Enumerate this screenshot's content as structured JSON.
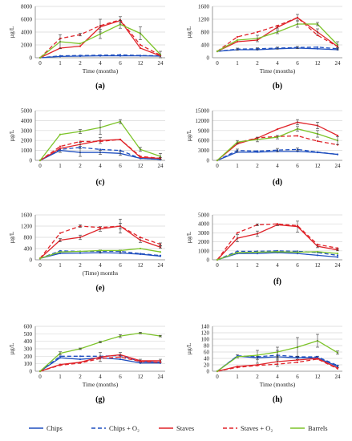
{
  "colors": {
    "chips": "#1f4fbf",
    "staves": "#e0242a",
    "barrels": "#7dc42a",
    "grid": "#d9d9d9",
    "axis": "#7f7f7f"
  },
  "legend": [
    {
      "key": "chips",
      "label": "Chips",
      "dash": "solid",
      "color": "#1f4fbf"
    },
    {
      "key": "chipsO2",
      "label": "Chips + O₂",
      "dash": "dashed",
      "color": "#1f4fbf"
    },
    {
      "key": "staves",
      "label": "Staves",
      "dash": "solid",
      "color": "#e0242a"
    },
    {
      "key": "stavesO2",
      "label": "Staves + O₂",
      "dash": "dashed",
      "color": "#e0242a"
    },
    {
      "key": "barrels",
      "label": "Barrels",
      "dash": "solid",
      "color": "#7dc42a"
    }
  ],
  "chart_data": [
    {
      "id": "a",
      "panel_label": "(a)",
      "type": "line",
      "x": [
        "0",
        "1",
        "2",
        "4",
        "6",
        "12",
        "24"
      ],
      "xlabel": "Time (months)",
      "ylabel": "µg/L",
      "ylim": [
        0,
        8000
      ],
      "yticks": [
        0,
        2000,
        4000,
        6000,
        8000
      ],
      "grid": true,
      "series": [
        {
          "key": "chips",
          "values": [
            0,
            200,
            250,
            300,
            300,
            300,
            250
          ],
          "err": [
            0,
            0,
            0,
            0,
            0,
            0,
            0
          ]
        },
        {
          "key": "chipsO2",
          "values": [
            0,
            300,
            350,
            400,
            450,
            350,
            300
          ],
          "err": [
            0,
            0,
            0,
            0,
            0,
            0,
            0
          ]
        },
        {
          "key": "staves",
          "values": [
            0,
            1500,
            1800,
            4800,
            5800,
            1500,
            300
          ],
          "err": [
            0,
            0,
            0,
            0,
            0,
            0,
            0
          ]
        },
        {
          "key": "stavesO2",
          "values": [
            0,
            3000,
            3600,
            5000,
            5900,
            2000,
            400
          ],
          "err": [
            0,
            0,
            200,
            1000,
            500,
            0,
            0
          ]
        },
        {
          "key": "barrels",
          "values": [
            0,
            2500,
            2200,
            3700,
            5200,
            3800,
            500
          ],
          "err": [
            0,
            1100,
            0,
            700,
            600,
            1000,
            500
          ]
        }
      ]
    },
    {
      "id": "b",
      "panel_label": "(b)",
      "type": "line",
      "x": [
        "0",
        "1",
        "2",
        "4",
        "6",
        "12",
        "24"
      ],
      "xlabel": "Time (months)",
      "ylabel": "µg/L",
      "ylim": [
        0,
        1600
      ],
      "yticks": [
        0,
        400,
        800,
        1200,
        1600
      ],
      "grid": true,
      "series": [
        {
          "key": "chips",
          "values": [
            200,
            250,
            250,
            280,
            300,
            280,
            250
          ],
          "err": [
            0,
            0,
            0,
            0,
            0,
            0,
            0
          ]
        },
        {
          "key": "chipsO2",
          "values": [
            200,
            270,
            280,
            300,
            320,
            330,
            280
          ],
          "err": [
            0,
            30,
            30,
            30,
            30,
            0,
            30
          ]
        },
        {
          "key": "staves",
          "values": [
            200,
            500,
            550,
            950,
            1250,
            800,
            350
          ],
          "err": [
            0,
            0,
            0,
            50,
            100,
            100,
            0
          ]
        },
        {
          "key": "stavesO2",
          "values": [
            200,
            650,
            800,
            1000,
            1250,
            700,
            350
          ],
          "err": [
            0,
            0,
            0,
            0,
            0,
            0,
            0
          ]
        },
        {
          "key": "barrels",
          "values": [
            200,
            550,
            600,
            800,
            1050,
            1050,
            400
          ],
          "err": [
            0,
            0,
            100,
            50,
            100,
            50,
            100
          ]
        }
      ]
    },
    {
      "id": "c",
      "panel_label": "(c)",
      "type": "line",
      "x": [
        "0",
        "1",
        "2",
        "4",
        "6",
        "12",
        "24"
      ],
      "xlabel": "",
      "ylabel": "µg/L",
      "ylim": [
        0,
        5000
      ],
      "yticks": [
        0,
        1000,
        2000,
        3000,
        4000,
        5000
      ],
      "grid": true,
      "series": [
        {
          "key": "chips",
          "values": [
            0,
            1000,
            800,
            800,
            700,
            200,
            100
          ],
          "err": [
            0,
            200,
            400,
            200,
            200,
            0,
            0
          ]
        },
        {
          "key": "chipsO2",
          "values": [
            0,
            1100,
            1300,
            1100,
            1000,
            200,
            100
          ],
          "err": [
            0,
            0,
            0,
            0,
            0,
            0,
            0
          ]
        },
        {
          "key": "staves",
          "values": [
            0,
            1200,
            1600,
            2000,
            2100,
            300,
            200
          ],
          "err": [
            0,
            0,
            200,
            300,
            0,
            0,
            100
          ]
        },
        {
          "key": "stavesO2",
          "values": [
            0,
            1400,
            1900,
            1900,
            2100,
            400,
            200
          ],
          "err": [
            0,
            0,
            0,
            0,
            0,
            0,
            0
          ]
        },
        {
          "key": "barrels",
          "values": [
            0,
            2600,
            2900,
            3300,
            3900,
            1100,
            400
          ],
          "err": [
            0,
            0,
            200,
            700,
            200,
            200,
            300
          ]
        }
      ]
    },
    {
      "id": "d",
      "panel_label": "(d)",
      "type": "line",
      "x": [
        "0",
        "1",
        "2",
        "4",
        "6",
        "12",
        "24"
      ],
      "xlabel": "",
      "ylabel": "µg/L",
      "ylim": [
        0,
        15000
      ],
      "yticks": [
        0,
        3000,
        6000,
        9000,
        12000,
        15000
      ],
      "grid": true,
      "series": [
        {
          "key": "chips",
          "values": [
            0,
            2500,
            2500,
            2700,
            2700,
            2400,
            1800
          ],
          "err": [
            0,
            0,
            0,
            0,
            0,
            0,
            0
          ]
        },
        {
          "key": "chipsO2",
          "values": [
            0,
            3000,
            2800,
            3100,
            3300,
            2500,
            1800
          ],
          "err": [
            0,
            400,
            0,
            500,
            400,
            0,
            0
          ]
        },
        {
          "key": "staves",
          "values": [
            0,
            5000,
            6700,
            9400,
            11500,
            10500,
            7500
          ],
          "err": [
            0,
            0,
            0,
            0,
            800,
            1000,
            0
          ]
        },
        {
          "key": "stavesO2",
          "values": [
            0,
            5300,
            6800,
            7200,
            7400,
            5800,
            4700
          ],
          "err": [
            0,
            0,
            0,
            0,
            0,
            0,
            0
          ]
        },
        {
          "key": "barrels",
          "values": [
            0,
            5500,
            6300,
            7000,
            9500,
            8000,
            6000
          ],
          "err": [
            0,
            500,
            700,
            500,
            700,
            1000,
            1200
          ]
        }
      ]
    },
    {
      "id": "e",
      "panel_label": "(e)",
      "type": "line",
      "x": [
        "0",
        "1",
        "2",
        "4",
        "6",
        "12",
        "24"
      ],
      "xlabel": "(Time) months",
      "ylabel": "µg/L",
      "ylim": [
        0,
        1600
      ],
      "yticks": [
        0,
        400,
        800,
        1200,
        1600
      ],
      "grid": true,
      "series": [
        {
          "key": "chips",
          "values": [
            50,
            230,
            240,
            250,
            240,
            200,
            130
          ],
          "err": [
            0,
            0,
            0,
            0,
            0,
            0,
            0
          ]
        },
        {
          "key": "chipsO2",
          "values": [
            50,
            320,
            300,
            300,
            300,
            220,
            150
          ],
          "err": [
            0,
            0,
            0,
            50,
            50,
            0,
            0
          ]
        },
        {
          "key": "staves",
          "values": [
            50,
            700,
            800,
            1100,
            1200,
            700,
            450
          ],
          "err": [
            0,
            60,
            80,
            80,
            250,
            80,
            40
          ]
        },
        {
          "key": "stavesO2",
          "values": [
            50,
            950,
            1200,
            1150,
            1200,
            800,
            550
          ],
          "err": [
            0,
            0,
            50,
            0,
            100,
            0,
            50
          ]
        },
        {
          "key": "barrels",
          "values": [
            50,
            280,
            300,
            330,
            330,
            400,
            280
          ],
          "err": [
            0,
            0,
            0,
            0,
            0,
            0,
            0
          ]
        }
      ]
    },
    {
      "id": "f",
      "panel_label": "(f)",
      "type": "line",
      "x": [
        "0",
        "1",
        "2",
        "4",
        "6",
        "12",
        "24"
      ],
      "xlabel": "",
      "ylabel": "µg/L",
      "ylim": [
        0,
        5000
      ],
      "yticks": [
        0,
        1000,
        2000,
        3000,
        4000,
        5000
      ],
      "grid": true,
      "series": [
        {
          "key": "chips",
          "values": [
            0,
            700,
            700,
            800,
            700,
            500,
            300
          ],
          "err": [
            0,
            0,
            0,
            0,
            0,
            0,
            0
          ]
        },
        {
          "key": "chipsO2",
          "values": [
            0,
            950,
            950,
            1000,
            950,
            800,
            500
          ],
          "err": [
            0,
            0,
            0,
            0,
            0,
            0,
            0
          ]
        },
        {
          "key": "staves",
          "values": [
            0,
            2400,
            2900,
            3900,
            3700,
            1500,
            1100
          ],
          "err": [
            0,
            400,
            300,
            100,
            600,
            150,
            100
          ]
        },
        {
          "key": "stavesO2",
          "values": [
            0,
            3000,
            3900,
            4000,
            3800,
            1700,
            1300
          ],
          "err": [
            0,
            0,
            100,
            0,
            0,
            0,
            0
          ]
        },
        {
          "key": "barrels",
          "values": [
            0,
            800,
            850,
            900,
            850,
            900,
            700
          ],
          "err": [
            0,
            0,
            0,
            0,
            0,
            0,
            0
          ]
        }
      ]
    },
    {
      "id": "g",
      "panel_label": "(g)",
      "type": "line",
      "x": [
        "0",
        "1",
        "2",
        "4",
        "6",
        "12",
        "24"
      ],
      "xlabel": "Time (months)",
      "ylabel": "µg/L",
      "ylim": [
        0,
        600
      ],
      "yticks": [
        0,
        100,
        200,
        300,
        400,
        500,
        600
      ],
      "grid": true,
      "series": [
        {
          "key": "chips",
          "values": [
            0,
            180,
            160,
            180,
            160,
            110,
            110
          ],
          "err": [
            0,
            0,
            0,
            0,
            0,
            0,
            0
          ]
        },
        {
          "key": "chipsO2",
          "values": [
            0,
            200,
            200,
            200,
            210,
            130,
            120
          ],
          "err": [
            0,
            0,
            0,
            0,
            0,
            0,
            0
          ]
        },
        {
          "key": "staves",
          "values": [
            0,
            90,
            120,
            190,
            220,
            140,
            140
          ],
          "err": [
            0,
            0,
            0,
            60,
            30,
            20,
            20
          ]
        },
        {
          "key": "stavesO2",
          "values": [
            0,
            80,
            110,
            170,
            190,
            130,
            120
          ],
          "err": [
            0,
            0,
            0,
            0,
            0,
            0,
            0
          ]
        },
        {
          "key": "barrels",
          "values": [
            0,
            240,
            300,
            390,
            470,
            510,
            470
          ],
          "err": [
            0,
            20,
            10,
            10,
            20,
            10,
            10
          ]
        }
      ]
    },
    {
      "id": "h",
      "panel_label": "(h)",
      "type": "line",
      "x": [
        "0",
        "1",
        "2",
        "4",
        "6",
        "12",
        "24"
      ],
      "xlabel": "Time (months)",
      "ylabel": "µg/L",
      "ylim": [
        0,
        140
      ],
      "yticks": [
        0,
        20,
        40,
        60,
        80,
        100,
        120,
        140
      ],
      "grid": true,
      "series": [
        {
          "key": "chips",
          "values": [
            0,
            47,
            42,
            45,
            42,
            42,
            15
          ],
          "err": [
            0,
            5,
            5,
            5,
            5,
            5,
            3
          ]
        },
        {
          "key": "chipsO2",
          "values": [
            0,
            48,
            45,
            50,
            45,
            45,
            18
          ],
          "err": [
            0,
            0,
            20,
            15,
            0,
            0,
            0
          ]
        },
        {
          "key": "staves",
          "values": [
            0,
            15,
            20,
            30,
            35,
            40,
            10
          ],
          "err": [
            0,
            0,
            0,
            15,
            0,
            0,
            0
          ]
        },
        {
          "key": "stavesO2",
          "values": [
            0,
            12,
            18,
            22,
            28,
            38,
            8
          ],
          "err": [
            0,
            0,
            0,
            0,
            0,
            0,
            0
          ]
        },
        {
          "key": "barrels",
          "values": [
            0,
            45,
            50,
            60,
            75,
            95,
            58
          ],
          "err": [
            0,
            0,
            0,
            15,
            30,
            20,
            5
          ]
        }
      ]
    }
  ]
}
